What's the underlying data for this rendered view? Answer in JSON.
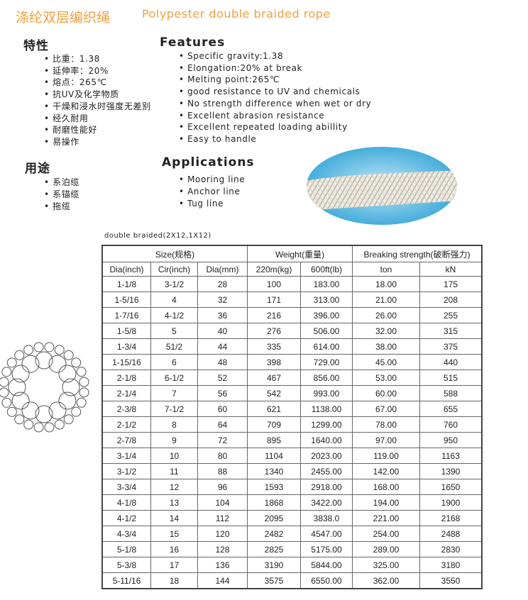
{
  "header": {
    "title_cn": "涤纶双层编织绳",
    "title_en": "Polypester double braided rope"
  },
  "features": {
    "heading_cn": "特性",
    "heading_en": "Features",
    "items_cn": [
      "比重：1.38",
      "延伸率：20%",
      "熔点：265℃",
      "抗UV及化学物质",
      "干燥和浸水时强度无差别",
      "经久耐用",
      "耐磨性能好",
      "易操作"
    ],
    "items_en": [
      "Specific gravity:1.38",
      "Elongation:20% at break",
      "Melting point:265℃",
      "good resistance to UV and chemicals",
      "No strength difference when wet or dry",
      "Excellent abrasion resistance",
      "Excellent repeated loading abillity",
      "Easy to handle"
    ]
  },
  "applications": {
    "heading_cn": "用途",
    "heading_en": "Applications",
    "items_cn": [
      "系泊缆",
      "系锚缆",
      "拖缆"
    ],
    "items_en": [
      "Mooring line",
      "Anchor line",
      "Tug line"
    ]
  },
  "table": {
    "caption": "double braided(2X12,1X12)",
    "groups": [
      "Size(规格)",
      "Weight(重量)",
      "Breaking strength(破断强力)"
    ],
    "columns": [
      "Dia(inch)",
      "Cir(inch)",
      "Dia(mm)",
      "220m(kg)",
      "600ft(lb)",
      "ton",
      "kN"
    ],
    "rows": [
      [
        "1-1/8",
        "3-1/2",
        "28",
        "100",
        "183.00",
        "18.00",
        "175"
      ],
      [
        "1-5/16",
        "4",
        "32",
        "171",
        "313.00",
        "21.00",
        "208"
      ],
      [
        "1-7/16",
        "4-1/2",
        "36",
        "216",
        "396.00",
        "26.00",
        "255"
      ],
      [
        "1-5/8",
        "5",
        "40",
        "276",
        "506.00",
        "32.00",
        "315"
      ],
      [
        "1-3/4",
        "51/2",
        "44",
        "335",
        "614.00",
        "38.00",
        "375"
      ],
      [
        "1-15/16",
        "6",
        "48",
        "398",
        "729.00",
        "45.00",
        "440"
      ],
      [
        "2-1/8",
        "6-1/2",
        "52",
        "467",
        "856.00",
        "53.00",
        "515"
      ],
      [
        "2-1/4",
        "7",
        "56",
        "542",
        "993.00",
        "60.00",
        "588"
      ],
      [
        "2-3/8",
        "7-1/2",
        "60",
        "621",
        "1138.00",
        "67.00",
        "655"
      ],
      [
        "2-1/2",
        "8",
        "64",
        "709",
        "1299.00",
        "78.00",
        "760"
      ],
      [
        "2-7/8",
        "9",
        "72",
        "895",
        "1640.00",
        "97.00",
        "950"
      ],
      [
        "3-1/4",
        "10",
        "80",
        "1104",
        "2023.00",
        "119.00",
        "1163"
      ],
      [
        "3-1/2",
        "11",
        "88",
        "1340",
        "2455.00",
        "142.00",
        "1390"
      ],
      [
        "3-3/4",
        "12",
        "96",
        "1593",
        "2918.00",
        "168.00",
        "1650"
      ],
      [
        "4-1/8",
        "13",
        "104",
        "1868",
        "3422.00",
        "194.00",
        "1900"
      ],
      [
        "4-1/2",
        "14",
        "112",
        "2095",
        "3838.0",
        "221.00",
        "2168"
      ],
      [
        "4-3/4",
        "15",
        "120",
        "2482",
        "4547.00",
        "254.00",
        "2488"
      ],
      [
        "5-1/8",
        "16",
        "128",
        "2825",
        "5175.00",
        "289.00",
        "2830"
      ],
      [
        "5-3/8",
        "17",
        "136",
        "3190",
        "5844.00",
        "325.00",
        "3180"
      ],
      [
        "5-11/16",
        "18",
        "144",
        "3575",
        "6550.00",
        "362.00",
        "3550"
      ]
    ]
  }
}
